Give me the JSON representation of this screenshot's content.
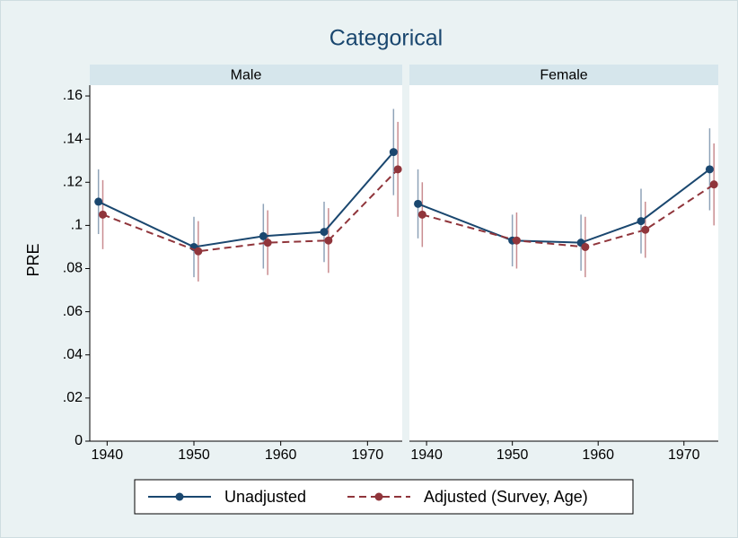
{
  "figure": {
    "title": "Categorical",
    "y_label": "PRE"
  },
  "chart_data": [
    {
      "type": "line",
      "title": "Male",
      "xlim": [
        1938,
        1974
      ],
      "xticks": [
        1940,
        1950,
        1960,
        1970
      ],
      "ylim": [
        0,
        0.165
      ],
      "yticks": [
        {
          "value": 0,
          "label": "0"
        },
        {
          "value": 0.02,
          "label": ".02"
        },
        {
          "value": 0.04,
          "label": ".04"
        },
        {
          "value": 0.06,
          "label": ".06"
        },
        {
          "value": 0.08,
          "label": ".08"
        },
        {
          "value": 0.1,
          "label": ".1"
        },
        {
          "value": 0.12,
          "label": ".12"
        },
        {
          "value": 0.14,
          "label": ".14"
        },
        {
          "value": 0.16,
          "label": ".16"
        }
      ],
      "series": [
        {
          "name": "Unadjusted",
          "color": "#1a476f",
          "style": "solid",
          "x": [
            1939,
            1950,
            1958,
            1965,
            1973
          ],
          "values": [
            0.111,
            0.09,
            0.095,
            0.097,
            0.134
          ],
          "errors": [
            0.015,
            0.014,
            0.015,
            0.014,
            0.02
          ]
        },
        {
          "name": "Adjusted (Survey, Age)",
          "color": "#90353b",
          "style": "dashed",
          "x": [
            1939.5,
            1950.5,
            1958.5,
            1965.5,
            1973.5
          ],
          "values": [
            0.105,
            0.088,
            0.092,
            0.093,
            0.126
          ],
          "errors": [
            0.016,
            0.014,
            0.015,
            0.015,
            0.022
          ]
        }
      ]
    },
    {
      "type": "line",
      "title": "Female",
      "xlim": [
        1938,
        1974
      ],
      "xticks": [
        1940,
        1950,
        1960,
        1970
      ],
      "ylim": [
        0,
        0.165
      ],
      "series": [
        {
          "name": "Unadjusted",
          "color": "#1a476f",
          "style": "solid",
          "x": [
            1939,
            1950,
            1958,
            1965,
            1973
          ],
          "values": [
            0.11,
            0.093,
            0.092,
            0.102,
            0.126
          ],
          "errors": [
            0.016,
            0.012,
            0.013,
            0.015,
            0.019
          ]
        },
        {
          "name": "Adjusted (Survey, Age)",
          "color": "#90353b",
          "style": "dashed",
          "x": [
            1939.5,
            1950.5,
            1958.5,
            1965.5,
            1973.5
          ],
          "values": [
            0.105,
            0.093,
            0.09,
            0.098,
            0.119
          ],
          "errors": [
            0.015,
            0.013,
            0.014,
            0.013,
            0.019
          ]
        }
      ]
    }
  ]
}
